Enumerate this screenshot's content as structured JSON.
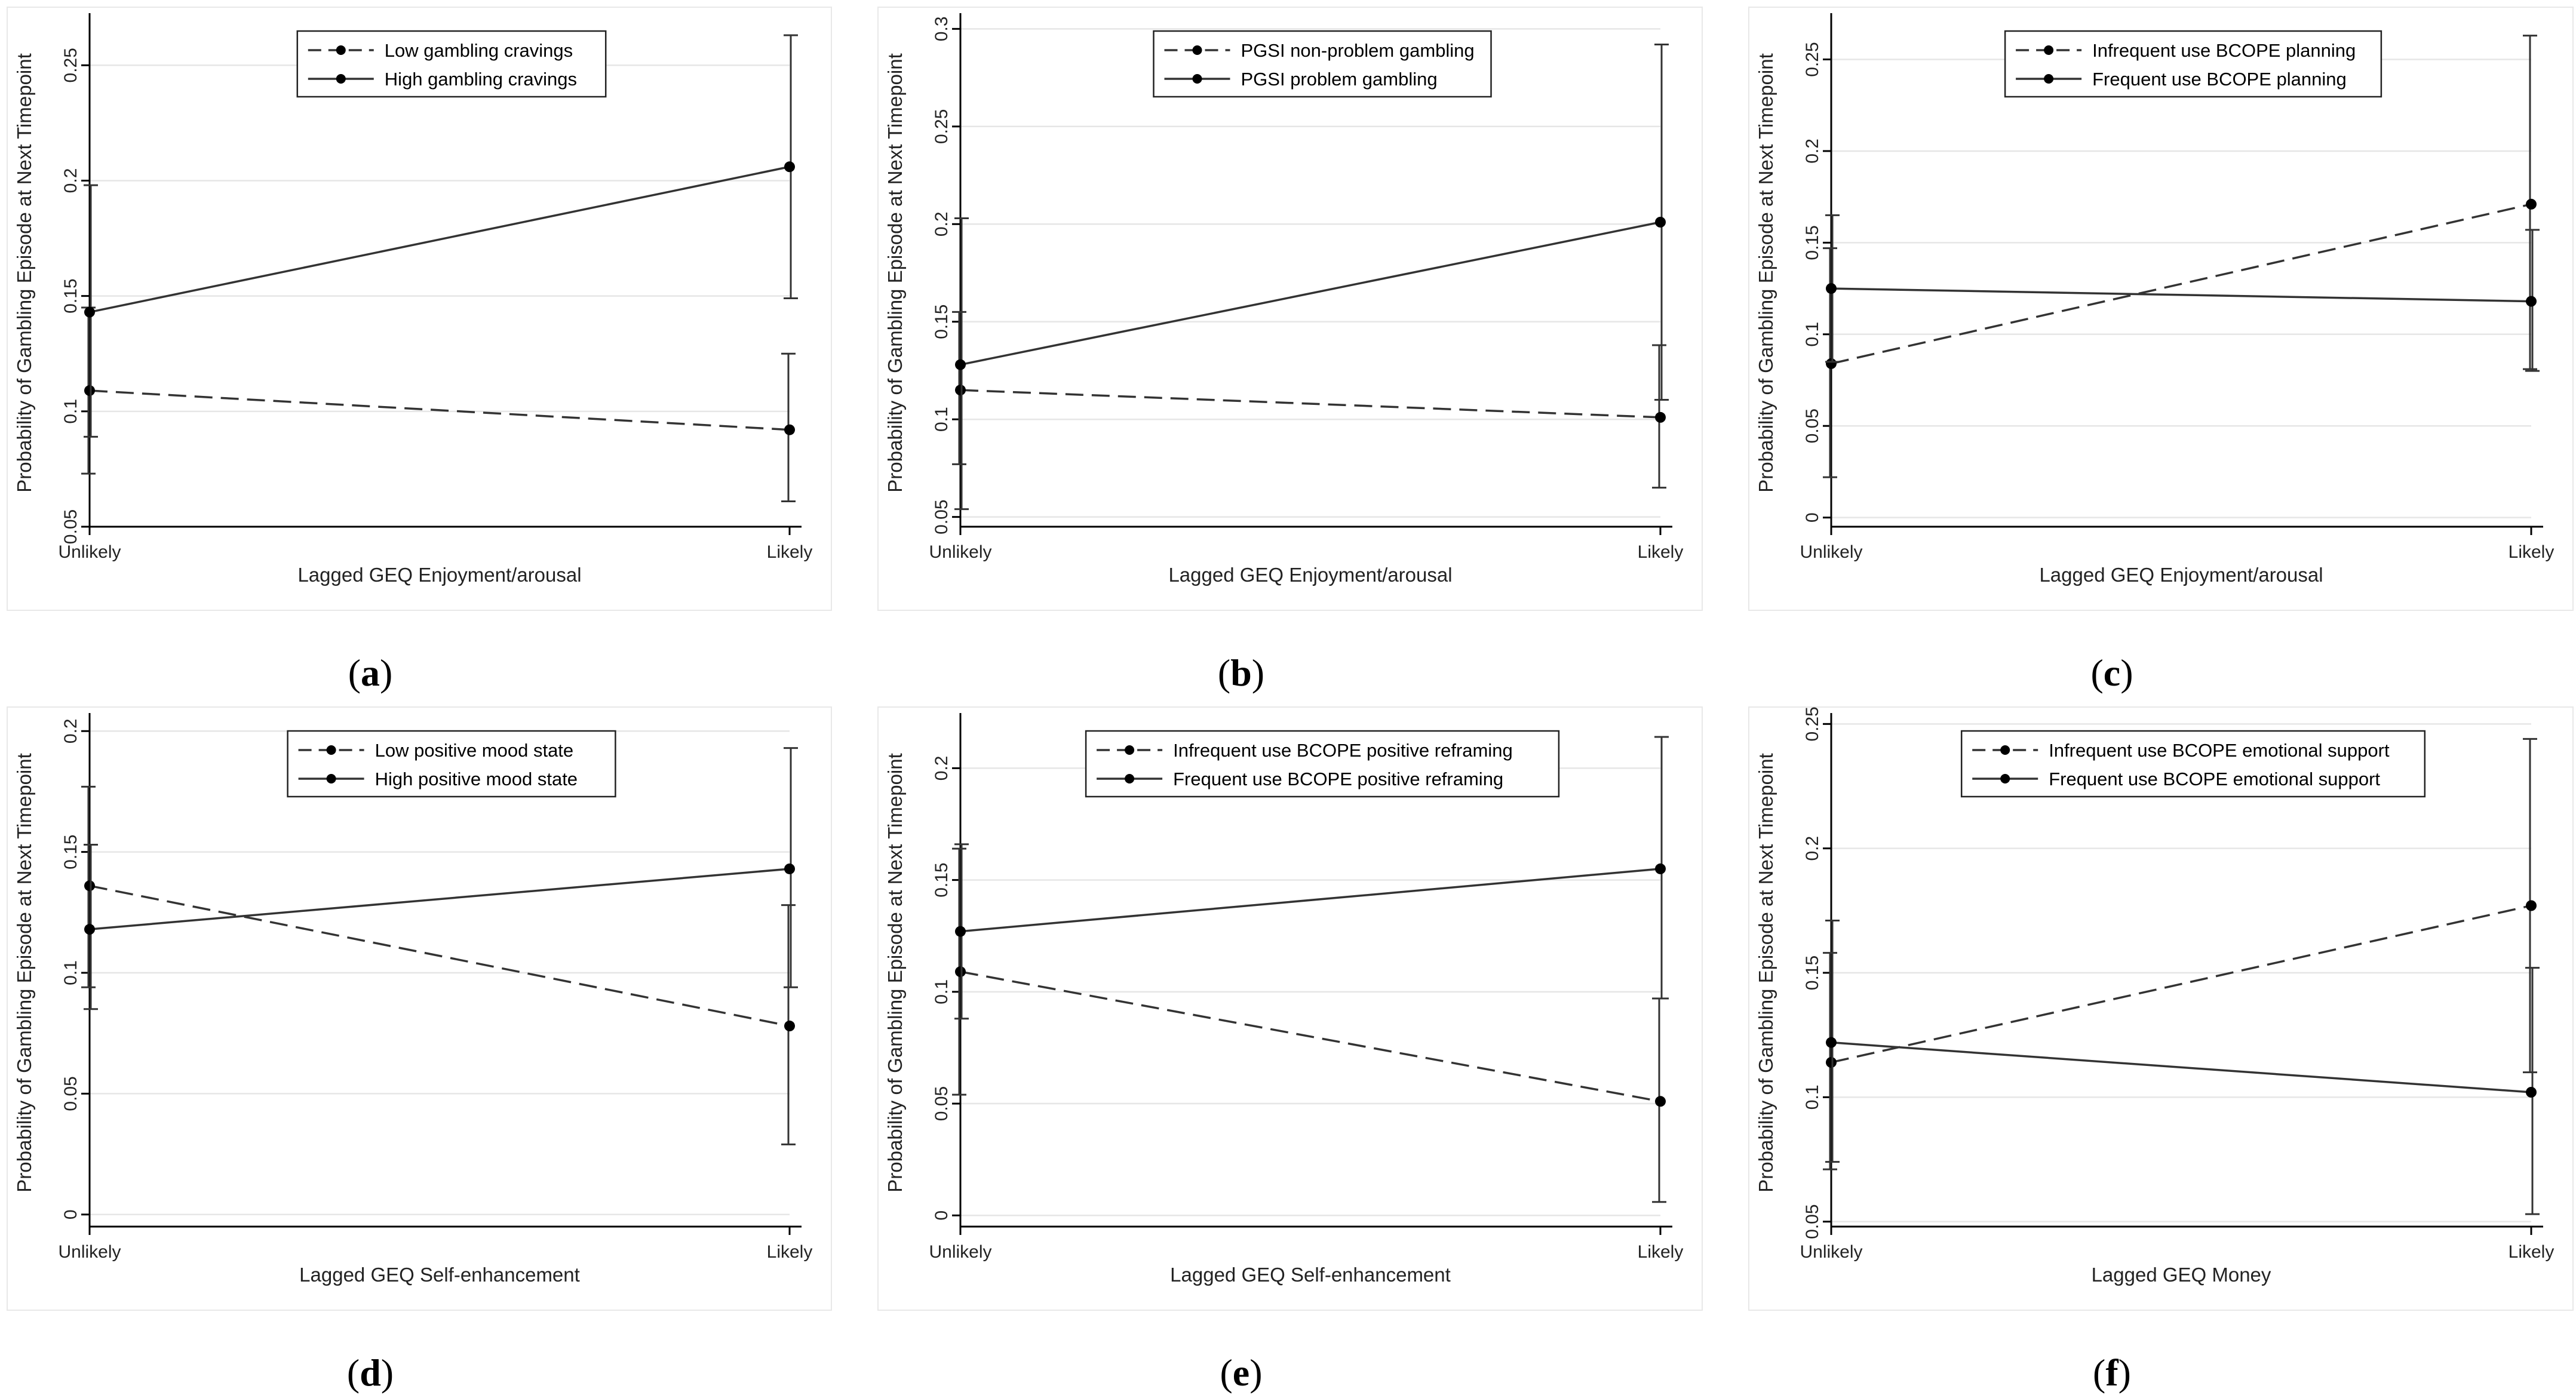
{
  "colors": {
    "line": "#333333",
    "grid": "#e6e6e6",
    "background": "#ffffff"
  },
  "chart_data": [
    {
      "type": "line",
      "caption": "a",
      "categories": [
        "Unlikely",
        "Likely"
      ],
      "xlabel": "Lagged GEQ Enjoyment/arousal",
      "ylabel": "Probability of Gambling Episode at Next Timepoint",
      "ylim": [
        0.05,
        0.27
      ],
      "yticks": [
        0.05,
        0.1,
        0.15,
        0.2,
        0.25
      ],
      "ytick_labels": [
        "0.05",
        "0.1",
        "0.15",
        "0.2",
        "0.25"
      ],
      "grid": true,
      "legend_position": "top-center",
      "series": [
        {
          "name": "Low gambling cravings",
          "dash": "dashed",
          "values": [
            0.109,
            0.092
          ],
          "ci_low": [
            0.073,
            0.061
          ],
          "ci_high": [
            0.145,
            0.125
          ]
        },
        {
          "name": "High gambling cravings",
          "dash": "solid",
          "values": [
            0.143,
            0.206
          ],
          "ci_low": [
            0.089,
            0.149
          ],
          "ci_high": [
            0.198,
            0.263
          ]
        }
      ]
    },
    {
      "type": "line",
      "caption": "b",
      "categories": [
        "Unlikely",
        "Likely"
      ],
      "xlabel": "Lagged GEQ Enjoyment/arousal",
      "ylabel": "Probability of Gambling Episode at Next Timepoint",
      "ylim": [
        0.045,
        0.305
      ],
      "yticks": [
        0.05,
        0.1,
        0.15,
        0.2,
        0.25,
        0.3
      ],
      "ytick_labels": [
        "0.05",
        "0.1",
        "0.15",
        "0.2",
        "0.25",
        "0.3"
      ],
      "grid": true,
      "legend_position": "top-center",
      "series": [
        {
          "name": "PGSI non-problem gambling",
          "dash": "dashed",
          "values": [
            0.115,
            0.101
          ],
          "ci_low": [
            0.077,
            0.065
          ],
          "ci_high": [
            0.155,
            0.138
          ]
        },
        {
          "name": "PGSI problem gambling",
          "dash": "solid",
          "values": [
            0.128,
            0.201
          ],
          "ci_low": [
            0.054,
            0.11
          ],
          "ci_high": [
            0.203,
            0.292
          ]
        }
      ]
    },
    {
      "type": "line",
      "caption": "c",
      "categories": [
        "Unlikely",
        "Likely"
      ],
      "xlabel": "Lagged GEQ Enjoyment/arousal",
      "ylabel": "Probability of Gambling Episode at Next Timepoint",
      "ylim": [
        -0.005,
        0.272
      ],
      "yticks": [
        0,
        0.05,
        0.1,
        0.15,
        0.2,
        0.25
      ],
      "ytick_labels": [
        "0",
        "0.05",
        "0.1",
        "0.15",
        "0.2",
        "0.25"
      ],
      "grid": true,
      "legend_position": "top-center",
      "series": [
        {
          "name": "Infrequent use BCOPE planning",
          "dash": "dashed",
          "values": [
            0.084,
            0.171
          ],
          "ci_low": [
            0.022,
            0.081
          ],
          "ci_high": [
            0.147,
            0.263
          ]
        },
        {
          "name": "Frequent use BCOPE planning",
          "dash": "solid",
          "values": [
            0.125,
            0.118
          ],
          "ci_low": [
            0.085,
            0.08
          ],
          "ci_high": [
            0.165,
            0.157
          ]
        }
      ]
    },
    {
      "type": "line",
      "caption": "d",
      "categories": [
        "Unlikely",
        "Likely"
      ],
      "xlabel": "Lagged GEQ Self-enhancement",
      "ylabel": "Probability of Gambling Episode at Next Timepoint",
      "ylim": [
        -0.005,
        0.205
      ],
      "yticks": [
        0,
        0.05,
        0.1,
        0.15,
        0.2
      ],
      "ytick_labels": [
        "0",
        "0.05",
        "0.1",
        "0.15",
        "0.2"
      ],
      "grid": true,
      "legend_position": "top-center",
      "series": [
        {
          "name": "Low positive mood state",
          "dash": "dashed",
          "values": [
            0.136,
            0.078
          ],
          "ci_low": [
            0.094,
            0.029
          ],
          "ci_high": [
            0.177,
            0.128
          ]
        },
        {
          "name": "High positive mood state",
          "dash": "solid",
          "values": [
            0.118,
            0.143
          ],
          "ci_low": [
            0.085,
            0.094
          ],
          "ci_high": [
            0.153,
            0.193
          ]
        }
      ]
    },
    {
      "type": "line",
      "caption": "e",
      "categories": [
        "Unlikely",
        "Likely"
      ],
      "xlabel": "Lagged GEQ Self-enhancement",
      "ylabel": "Probability of Gambling Episode at Next Timepoint",
      "ylim": [
        -0.005,
        0.222
      ],
      "yticks": [
        0,
        0.05,
        0.1,
        0.15,
        0.2
      ],
      "ytick_labels": [
        "0",
        "0.05",
        "0.1",
        "0.15",
        "0.2"
      ],
      "grid": true,
      "legend_position": "top-center",
      "series": [
        {
          "name": "Infrequent use BCOPE positive reframing",
          "dash": "dashed",
          "values": [
            0.109,
            0.051
          ],
          "ci_low": [
            0.054,
            0.006
          ],
          "ci_high": [
            0.164,
            0.097
          ]
        },
        {
          "name": "Frequent use BCOPE positive reframing",
          "dash": "solid",
          "values": [
            0.127,
            0.155
          ],
          "ci_low": [
            0.088,
            0.097
          ],
          "ci_high": [
            0.166,
            0.214
          ]
        }
      ]
    },
    {
      "type": "line",
      "caption": "f",
      "categories": [
        "Unlikely",
        "Likely"
      ],
      "xlabel": "Lagged GEQ Money",
      "ylabel": "Probability of Gambling Episode at Next Timepoint",
      "ylim": [
        0.048,
        0.252
      ],
      "yticks": [
        0.05,
        0.1,
        0.15,
        0.2,
        0.25
      ],
      "ytick_labels": [
        "0.05",
        "0.1",
        "0.15",
        "0.2",
        "0.25"
      ],
      "grid": true,
      "legend_position": "top-center",
      "series": [
        {
          "name": "Infrequent use BCOPE emotional support",
          "dash": "dashed",
          "values": [
            0.114,
            0.177
          ],
          "ci_low": [
            0.071,
            0.11
          ],
          "ci_high": [
            0.158,
            0.244
          ]
        },
        {
          "name": "Frequent use BCOPE emotional support",
          "dash": "solid",
          "values": [
            0.122,
            0.102
          ],
          "ci_low": [
            0.074,
            0.053
          ],
          "ci_high": [
            0.171,
            0.152
          ]
        }
      ]
    }
  ]
}
